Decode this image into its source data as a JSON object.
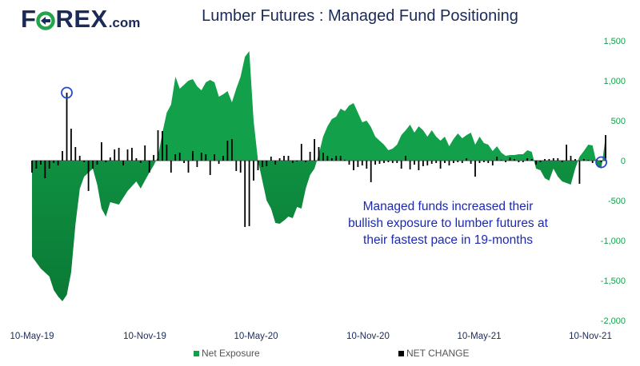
{
  "logo": {
    "letters_pre": "F",
    "letters_post": "REX",
    "domain": ".com",
    "accent": "#23a34a",
    "color": "#1b2a56"
  },
  "chart_data": {
    "type": "area",
    "title": "Lumber Futures : Managed Fund Positioning",
    "annotation": [
      "Managed funds increased their",
      "bullish exposure to lumber futures at",
      "their fastest pace in 19-months"
    ],
    "x_tick_labels": [
      "10-May-19",
      "10-Nov-19",
      "10-May-20",
      "10-Nov-20",
      "10-May-21",
      "10-Nov-21"
    ],
    "y_tick_labels": [
      "1,500",
      "1,000",
      "500",
      "0",
      "-500",
      "-1,000",
      "-1,500",
      "-2,000"
    ],
    "y_ticks": [
      1500,
      1000,
      500,
      0,
      -500,
      -1000,
      -1500,
      -2000
    ],
    "ylim": [
      -2000,
      1500
    ],
    "week_count": 132,
    "legend": [
      {
        "label": "Net Exposure",
        "color": "#13a04a"
      },
      {
        "label": "NET CHANGE",
        "color": "#000000"
      }
    ],
    "series": [
      {
        "name": "Net Exposure",
        "kind": "area",
        "color": "#13a04a",
        "dark_color": "#0a7a35",
        "points": [
          [
            0,
            -1200
          ],
          [
            2,
            -1350
          ],
          [
            4,
            -1450
          ],
          [
            5,
            -1620
          ],
          [
            6,
            -1700
          ],
          [
            7,
            -1760
          ],
          [
            8,
            -1680
          ],
          [
            9,
            -1400
          ],
          [
            10,
            -800
          ],
          [
            11,
            -350
          ],
          [
            12,
            -200
          ],
          [
            13,
            -150
          ],
          [
            14,
            -100
          ],
          [
            15,
            -300
          ],
          [
            16,
            -600
          ],
          [
            17,
            -700
          ],
          [
            18,
            -520
          ],
          [
            20,
            -550
          ],
          [
            22,
            -380
          ],
          [
            24,
            -260
          ],
          [
            25,
            -350
          ],
          [
            26,
            -250
          ],
          [
            27,
            -150
          ],
          [
            28,
            -60
          ],
          [
            29,
            50
          ],
          [
            30,
            350
          ],
          [
            31,
            600
          ],
          [
            32,
            700
          ],
          [
            33,
            1050
          ],
          [
            34,
            900
          ],
          [
            35,
            950
          ],
          [
            36,
            1000
          ],
          [
            37,
            1020
          ],
          [
            38,
            930
          ],
          [
            39,
            880
          ],
          [
            40,
            980
          ],
          [
            41,
            1010
          ],
          [
            42,
            980
          ],
          [
            43,
            800
          ],
          [
            44,
            830
          ],
          [
            45,
            870
          ],
          [
            46,
            730
          ],
          [
            47,
            900
          ],
          [
            48,
            1050
          ],
          [
            49,
            1300
          ],
          [
            50,
            1370
          ],
          [
            51,
            500
          ],
          [
            52,
            0
          ],
          [
            53,
            -250
          ],
          [
            54,
            -500
          ],
          [
            55,
            -600
          ],
          [
            56,
            -780
          ],
          [
            57,
            -790
          ],
          [
            58,
            -750
          ],
          [
            59,
            -700
          ],
          [
            60,
            -720
          ],
          [
            61,
            -580
          ],
          [
            62,
            -600
          ],
          [
            63,
            -350
          ],
          [
            64,
            -180
          ],
          [
            65,
            -100
          ],
          [
            66,
            80
          ],
          [
            67,
            300
          ],
          [
            68,
            430
          ],
          [
            69,
            520
          ],
          [
            70,
            550
          ],
          [
            71,
            650
          ],
          [
            72,
            620
          ],
          [
            73,
            690
          ],
          [
            74,
            720
          ],
          [
            75,
            600
          ],
          [
            76,
            480
          ],
          [
            77,
            500
          ],
          [
            78,
            420
          ],
          [
            79,
            300
          ],
          [
            80,
            250
          ],
          [
            81,
            200
          ],
          [
            82,
            130
          ],
          [
            83,
            150
          ],
          [
            84,
            200
          ],
          [
            85,
            320
          ],
          [
            86,
            380
          ],
          [
            87,
            450
          ],
          [
            88,
            350
          ],
          [
            89,
            430
          ],
          [
            90,
            380
          ],
          [
            91,
            300
          ],
          [
            92,
            380
          ],
          [
            93,
            300
          ],
          [
            94,
            250
          ],
          [
            95,
            300
          ],
          [
            96,
            180
          ],
          [
            97,
            270
          ],
          [
            98,
            340
          ],
          [
            99,
            280
          ],
          [
            100,
            320
          ],
          [
            101,
            350
          ],
          [
            102,
            200
          ],
          [
            103,
            300
          ],
          [
            104,
            220
          ],
          [
            105,
            200
          ],
          [
            106,
            120
          ],
          [
            107,
            180
          ],
          [
            108,
            100
          ],
          [
            109,
            60
          ],
          [
            110,
            70
          ],
          [
            111,
            70
          ],
          [
            112,
            80
          ],
          [
            113,
            80
          ],
          [
            114,
            130
          ],
          [
            115,
            110
          ],
          [
            116,
            -100
          ],
          [
            117,
            -120
          ],
          [
            118,
            -220
          ],
          [
            119,
            -250
          ],
          [
            120,
            -100
          ],
          [
            121,
            -200
          ],
          [
            122,
            -260
          ],
          [
            123,
            -280
          ],
          [
            124,
            -300
          ],
          [
            125,
            -100
          ],
          [
            126,
            50
          ],
          [
            127,
            120
          ],
          [
            128,
            200
          ],
          [
            129,
            190
          ],
          [
            130,
            -50
          ],
          [
            131,
            -100
          ],
          [
            132,
            300
          ]
        ]
      },
      {
        "name": "NET CHANGE",
        "kind": "bar",
        "color": "#000000",
        "points": [
          [
            0,
            -150
          ],
          [
            1,
            -100
          ],
          [
            2,
            -50
          ],
          [
            3,
            -220
          ],
          [
            4,
            -100
          ],
          [
            5,
            -30
          ],
          [
            6,
            -60
          ],
          [
            7,
            120
          ],
          [
            8,
            850
          ],
          [
            9,
            400
          ],
          [
            10,
            170
          ],
          [
            11,
            60
          ],
          [
            12,
            -20
          ],
          [
            13,
            -380
          ],
          [
            14,
            -100
          ],
          [
            15,
            -50
          ],
          [
            16,
            230
          ],
          [
            17,
            -20
          ],
          [
            18,
            40
          ],
          [
            19,
            140
          ],
          [
            20,
            160
          ],
          [
            21,
            -60
          ],
          [
            22,
            140
          ],
          [
            23,
            160
          ],
          [
            24,
            30
          ],
          [
            25,
            -30
          ],
          [
            26,
            190
          ],
          [
            27,
            -150
          ],
          [
            28,
            70
          ],
          [
            29,
            380
          ],
          [
            30,
            370
          ],
          [
            31,
            200
          ],
          [
            32,
            -150
          ],
          [
            33,
            80
          ],
          [
            34,
            100
          ],
          [
            35,
            -30
          ],
          [
            36,
            -150
          ],
          [
            37,
            120
          ],
          [
            38,
            -80
          ],
          [
            39,
            100
          ],
          [
            40,
            80
          ],
          [
            41,
            -180
          ],
          [
            42,
            80
          ],
          [
            43,
            -40
          ],
          [
            44,
            60
          ],
          [
            45,
            250
          ],
          [
            46,
            270
          ],
          [
            47,
            -130
          ],
          [
            48,
            -150
          ],
          [
            49,
            -830
          ],
          [
            50,
            -820
          ],
          [
            51,
            -250
          ],
          [
            52,
            -120
          ],
          [
            53,
            -80
          ],
          [
            54,
            -70
          ],
          [
            55,
            50
          ],
          [
            56,
            -50
          ],
          [
            57,
            30
          ],
          [
            58,
            60
          ],
          [
            59,
            60
          ],
          [
            60,
            -30
          ],
          [
            61,
            -10
          ],
          [
            62,
            210
          ],
          [
            63,
            -20
          ],
          [
            64,
            110
          ],
          [
            65,
            270
          ],
          [
            66,
            170
          ],
          [
            67,
            100
          ],
          [
            68,
            60
          ],
          [
            69,
            30
          ],
          [
            70,
            60
          ],
          [
            71,
            60
          ],
          [
            72,
            10
          ],
          [
            73,
            -50
          ],
          [
            74,
            -120
          ],
          [
            75,
            -80
          ],
          [
            76,
            -60
          ],
          [
            77,
            -100
          ],
          [
            78,
            -270
          ],
          [
            79,
            -50
          ],
          [
            80,
            -40
          ],
          [
            81,
            -30
          ],
          [
            82,
            -20
          ],
          [
            83,
            -30
          ],
          [
            84,
            -30
          ],
          [
            85,
            -100
          ],
          [
            86,
            60
          ],
          [
            87,
            -110
          ],
          [
            88,
            -50
          ],
          [
            89,
            -120
          ],
          [
            90,
            -70
          ],
          [
            91,
            -60
          ],
          [
            92,
            -40
          ],
          [
            93,
            -30
          ],
          [
            94,
            -100
          ],
          [
            95,
            -30
          ],
          [
            96,
            -60
          ],
          [
            97,
            -30
          ],
          [
            98,
            -20
          ],
          [
            99,
            -30
          ],
          [
            100,
            30
          ],
          [
            101,
            -40
          ],
          [
            102,
            -200
          ],
          [
            103,
            -30
          ],
          [
            104,
            -20
          ],
          [
            105,
            -30
          ],
          [
            106,
            -60
          ],
          [
            107,
            50
          ],
          [
            108,
            10
          ],
          [
            109,
            -20
          ],
          [
            110,
            40
          ],
          [
            111,
            20
          ],
          [
            112,
            -20
          ],
          [
            113,
            -20
          ],
          [
            114,
            30
          ],
          [
            115,
            20
          ],
          [
            116,
            -50
          ],
          [
            117,
            -20
          ],
          [
            118,
            20
          ],
          [
            119,
            20
          ],
          [
            120,
            30
          ],
          [
            121,
            30
          ],
          [
            122,
            -20
          ],
          [
            123,
            200
          ],
          [
            124,
            60
          ],
          [
            125,
            20
          ],
          [
            126,
            -290
          ],
          [
            127,
            20
          ],
          [
            128,
            10
          ],
          [
            129,
            -30
          ],
          [
            130,
            20
          ],
          [
            131,
            -20
          ],
          [
            132,
            320
          ]
        ]
      }
    ],
    "highlight_weeks": [
      8,
      131
    ]
  }
}
